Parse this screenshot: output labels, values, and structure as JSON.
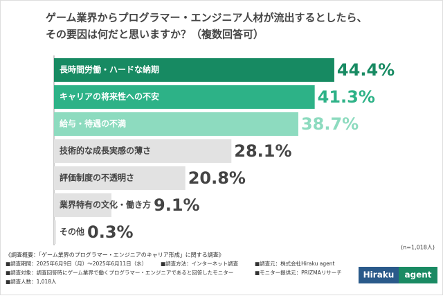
{
  "chart_data": {
    "type": "bar",
    "orientation": "horizontal",
    "title": [
      "ゲーム業界からプログラマー・エンジニア人材が流出するとしたら、",
      "その要因は何だと思いますか？（複数回答可）"
    ],
    "categories": [
      "長時間労働・ハードな納期",
      "キャリアの将来性への不安",
      "給与・待遇の不満",
      "技術的な成長実感の薄さ",
      "評価制度の不透明さ",
      "業界特有の文化・働き方",
      "その他"
    ],
    "values": [
      44.4,
      41.3,
      38.7,
      28.1,
      20.8,
      9.1,
      0.3
    ],
    "value_labels": [
      "44.4%",
      "41.3%",
      "38.7%",
      "28.1%",
      "20.8%",
      "9.1%",
      "0.3%"
    ],
    "colors": [
      "#178a62",
      "#2db287",
      "#8ddbbf",
      "#e2e2e2",
      "#e2e2e2",
      "#e2e2e2",
      "#e2e2e2"
    ],
    "label_colors": [
      "#178a62",
      "#2db287",
      "#8ddbbf",
      "#444444",
      "#444444",
      "#444444",
      "#444444"
    ],
    "sample_note": "(n=1,018人)"
  },
  "notes": {
    "heading": "《調査概要：「ゲーム業界のプログラマー・エンジニアのキャリア形成」に関する調査》",
    "rows": [
      [
        "■調査期間：2025年6月9日（月）～2025年6月11日（水）",
        "■調査方法：インターネット調査",
        "■調査元：株式会社Hiraku agent"
      ],
      [
        "■調査対象：調査回答時にゲーム業界で働くプログラマー・エンジニアであると回答したモニター",
        "■モニター提供元：PRIZMAリサーチ"
      ],
      [
        "■調査人数：1,018人"
      ]
    ]
  },
  "logo": [
    "Hiraku",
    "agent"
  ]
}
